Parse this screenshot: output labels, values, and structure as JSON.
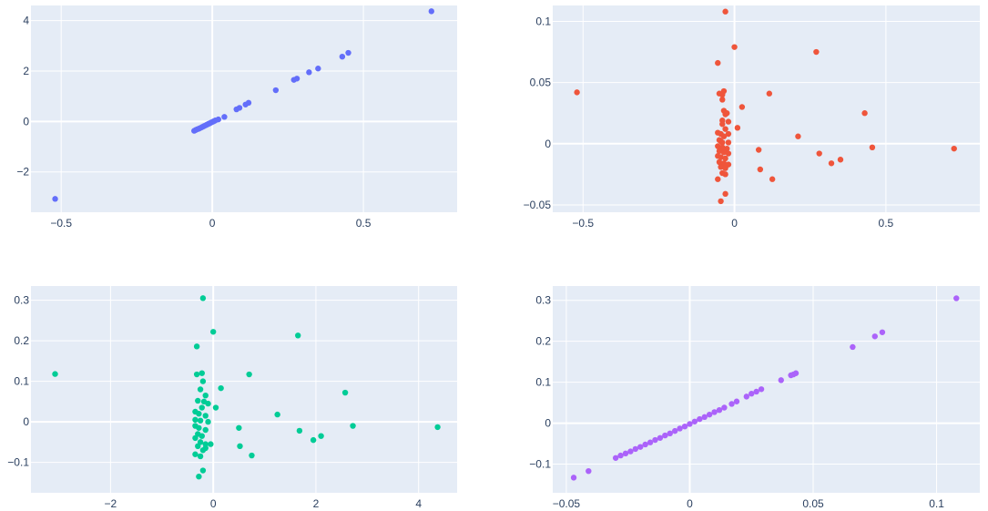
{
  "colors": [
    "#636efa",
    "#ef553b",
    "#00cc96",
    "#ab63fa"
  ],
  "chart_data": [
    {
      "type": "scatter",
      "title": "",
      "xlabel": "",
      "ylabel": "",
      "grid": true,
      "xlim": [
        -0.6,
        0.81
      ],
      "ylim": [
        -3.6,
        4.6
      ],
      "xticks": [
        -0.5,
        0,
        0.5
      ],
      "xtick_labels": [
        "−0.5",
        "0",
        "0.5"
      ],
      "yticks": [
        -2,
        0,
        2,
        4
      ],
      "ytick_labels": [
        "−2",
        "0",
        "2",
        "4"
      ],
      "color": "#636efa",
      "points": [
        [
          -0.52,
          -3.07
        ],
        [
          -0.06,
          -0.37
        ],
        [
          -0.055,
          -0.34
        ],
        [
          -0.05,
          -0.31
        ],
        [
          -0.045,
          -0.29
        ],
        [
          -0.04,
          -0.26
        ],
        [
          -0.035,
          -0.23
        ],
        [
          -0.03,
          -0.2
        ],
        [
          -0.025,
          -0.17
        ],
        [
          -0.02,
          -0.14
        ],
        [
          -0.015,
          -0.11
        ],
        [
          -0.01,
          -0.08
        ],
        [
          -0.005,
          -0.05
        ],
        [
          0.0,
          -0.02
        ],
        [
          0.005,
          0.01
        ],
        [
          0.01,
          0.04
        ],
        [
          0.02,
          0.08
        ],
        [
          0.04,
          0.18
        ],
        [
          0.08,
          0.48
        ],
        [
          0.09,
          0.54
        ],
        [
          0.11,
          0.67
        ],
        [
          0.12,
          0.74
        ],
        [
          0.21,
          1.24
        ],
        [
          0.27,
          1.65
        ],
        [
          0.28,
          1.7
        ],
        [
          0.32,
          1.95
        ],
        [
          0.35,
          2.1
        ],
        [
          0.43,
          2.57
        ],
        [
          0.45,
          2.72
        ],
        [
          0.725,
          4.37
        ]
      ]
    },
    {
      "type": "scatter",
      "title": "",
      "xlabel": "",
      "ylabel": "",
      "grid": true,
      "xlim": [
        -0.6,
        0.81
      ],
      "ylim": [
        -0.056,
        0.113
      ],
      "xticks": [
        -0.5,
        0,
        0.5
      ],
      "xtick_labels": [
        "−0.5",
        "0",
        "0.5"
      ],
      "yticks": [
        -0.05,
        0,
        0.05,
        0.1
      ],
      "ytick_labels": [
        "−0.05",
        "0",
        "0.05",
        "0.1"
      ],
      "color": "#ef553b",
      "points": [
        [
          -0.52,
          0.042
        ],
        [
          -0.03,
          0.108
        ],
        [
          0.0,
          0.079
        ],
        [
          -0.055,
          0.066
        ],
        [
          -0.05,
          0.041
        ],
        [
          -0.04,
          0.04
        ],
        [
          -0.035,
          0.043
        ],
        [
          -0.04,
          0.036
        ],
        [
          -0.035,
          0.027
        ],
        [
          -0.03,
          0.024
        ],
        [
          -0.025,
          0.025
        ],
        [
          -0.04,
          0.019
        ],
        [
          -0.04,
          0.016
        ],
        [
          -0.02,
          0.018
        ],
        [
          -0.03,
          0.012
        ],
        [
          -0.055,
          0.009
        ],
        [
          -0.045,
          0.008
        ],
        [
          -0.035,
          0.006
        ],
        [
          -0.02,
          0.008
        ],
        [
          0.01,
          0.013
        ],
        [
          0.025,
          0.03
        ],
        [
          -0.05,
          0.003
        ],
        [
          -0.045,
          0.002
        ],
        [
          -0.04,
          0.001
        ],
        [
          -0.02,
          0.001
        ],
        [
          -0.055,
          -0.002
        ],
        [
          -0.04,
          -0.003
        ],
        [
          -0.025,
          -0.004
        ],
        [
          -0.05,
          -0.006
        ],
        [
          -0.035,
          -0.007
        ],
        [
          -0.02,
          -0.008
        ],
        [
          -0.055,
          -0.01
        ],
        [
          -0.045,
          -0.011
        ],
        [
          -0.03,
          -0.012
        ],
        [
          -0.05,
          -0.015
        ],
        [
          -0.035,
          -0.016
        ],
        [
          -0.02,
          -0.017
        ],
        [
          -0.045,
          -0.019
        ],
        [
          -0.03,
          -0.02
        ],
        [
          -0.04,
          -0.024
        ],
        [
          -0.03,
          -0.025
        ],
        [
          -0.055,
          -0.029
        ],
        [
          -0.03,
          -0.041
        ],
        [
          -0.045,
          -0.047
        ],
        [
          0.08,
          -0.005
        ],
        [
          0.085,
          -0.021
        ],
        [
          0.115,
          0.041
        ],
        [
          0.125,
          -0.029
        ],
        [
          0.21,
          0.006
        ],
        [
          0.27,
          0.075
        ],
        [
          0.28,
          -0.008
        ],
        [
          0.32,
          -0.016
        ],
        [
          0.35,
          -0.013
        ],
        [
          0.43,
          0.025
        ],
        [
          0.455,
          -0.003
        ],
        [
          0.725,
          -0.004
        ]
      ]
    },
    {
      "type": "scatter",
      "title": "",
      "xlabel": "",
      "ylabel": "",
      "grid": true,
      "xlim": [
        -3.55,
        4.75
      ],
      "ylim": [
        -0.175,
        0.335
      ],
      "xticks": [
        -2,
        0,
        2,
        4
      ],
      "xtick_labels": [
        "−2",
        "0",
        "2",
        "4"
      ],
      "yticks": [
        -0.1,
        0,
        0.1,
        0.2,
        0.3
      ],
      "ytick_labels": [
        "−0.1",
        "0",
        "0.1",
        "0.2",
        "0.3"
      ],
      "color": "#00cc96",
      "points": [
        [
          -3.08,
          0.118
        ],
        [
          -0.2,
          0.305
        ],
        [
          0.0,
          0.222
        ],
        [
          -0.32,
          0.186
        ],
        [
          -0.32,
          0.117
        ],
        [
          -0.22,
          0.12
        ],
        [
          -0.2,
          0.1
        ],
        [
          -0.25,
          0.08
        ],
        [
          -0.15,
          0.065
        ],
        [
          -0.18,
          0.05
        ],
        [
          -0.3,
          0.052
        ],
        [
          -0.1,
          0.045
        ],
        [
          -0.22,
          0.035
        ],
        [
          -0.35,
          0.025
        ],
        [
          -0.28,
          0.02
        ],
        [
          -0.15,
          0.015
        ],
        [
          -0.35,
          0.005
        ],
        [
          -0.25,
          0.003
        ],
        [
          -0.1,
          0.0
        ],
        [
          -0.35,
          -0.01
        ],
        [
          -0.28,
          -0.015
        ],
        [
          -0.15,
          -0.02
        ],
        [
          -0.3,
          -0.03
        ],
        [
          -0.22,
          -0.035
        ],
        [
          -0.35,
          -0.04
        ],
        [
          -0.25,
          -0.05
        ],
        [
          -0.15,
          -0.055
        ],
        [
          -0.3,
          -0.06
        ],
        [
          -0.2,
          -0.07
        ],
        [
          -0.35,
          -0.08
        ],
        [
          -0.25,
          -0.085
        ],
        [
          -0.15,
          -0.065
        ],
        [
          -0.2,
          -0.12
        ],
        [
          -0.28,
          -0.135
        ],
        [
          -0.05,
          -0.055
        ],
        [
          0.05,
          0.035
        ],
        [
          0.15,
          0.083
        ],
        [
          0.5,
          -0.015
        ],
        [
          0.52,
          -0.06
        ],
        [
          0.7,
          0.117
        ],
        [
          0.75,
          -0.083
        ],
        [
          1.25,
          0.018
        ],
        [
          1.65,
          0.213
        ],
        [
          1.68,
          -0.022
        ],
        [
          1.95,
          -0.045
        ],
        [
          2.1,
          -0.035
        ],
        [
          2.57,
          0.072
        ],
        [
          2.72,
          -0.01
        ],
        [
          4.37,
          -0.013
        ]
      ]
    },
    {
      "type": "scatter",
      "title": "",
      "xlabel": "",
      "ylabel": "",
      "grid": true,
      "xlim": [
        -0.0555,
        0.1175
      ],
      "ylim": [
        -0.17,
        0.335
      ],
      "xticks": [
        -0.05,
        0,
        0.05,
        0.1
      ],
      "xtick_labels": [
        "−0.05",
        "0",
        "0.05",
        "0.1"
      ],
      "yticks": [
        -0.1,
        0,
        0.1,
        0.2,
        0.3
      ],
      "ytick_labels": [
        "−0.1",
        "0",
        "0.1",
        "0.2",
        "0.3"
      ],
      "color": "#ab63fa",
      "points": [
        [
          -0.047,
          -0.133
        ],
        [
          -0.041,
          -0.117
        ],
        [
          -0.03,
          -0.085
        ],
        [
          -0.028,
          -0.079
        ],
        [
          -0.026,
          -0.074
        ],
        [
          -0.024,
          -0.069
        ],
        [
          -0.022,
          -0.063
        ],
        [
          -0.02,
          -0.058
        ],
        [
          -0.018,
          -0.052
        ],
        [
          -0.016,
          -0.047
        ],
        [
          -0.014,
          -0.041
        ],
        [
          -0.012,
          -0.036
        ],
        [
          -0.01,
          -0.03
        ],
        [
          -0.008,
          -0.025
        ],
        [
          -0.006,
          -0.019
        ],
        [
          -0.004,
          -0.013
        ],
        [
          -0.002,
          -0.008
        ],
        [
          0.0,
          -0.002
        ],
        [
          0.002,
          0.004
        ],
        [
          0.004,
          0.01
        ],
        [
          0.006,
          0.015
        ],
        [
          0.008,
          0.021
        ],
        [
          0.01,
          0.027
        ],
        [
          0.012,
          0.032
        ],
        [
          0.014,
          0.038
        ],
        [
          0.017,
          0.047
        ],
        [
          0.019,
          0.053
        ],
        [
          0.023,
          0.065
        ],
        [
          0.025,
          0.072
        ],
        [
          0.027,
          0.077
        ],
        [
          0.029,
          0.083
        ],
        [
          0.037,
          0.105
        ],
        [
          0.041,
          0.117
        ],
        [
          0.042,
          0.119
        ],
        [
          0.043,
          0.122
        ],
        [
          0.066,
          0.186
        ],
        [
          0.075,
          0.212
        ],
        [
          0.078,
          0.222
        ],
        [
          0.108,
          0.305
        ]
      ]
    }
  ]
}
